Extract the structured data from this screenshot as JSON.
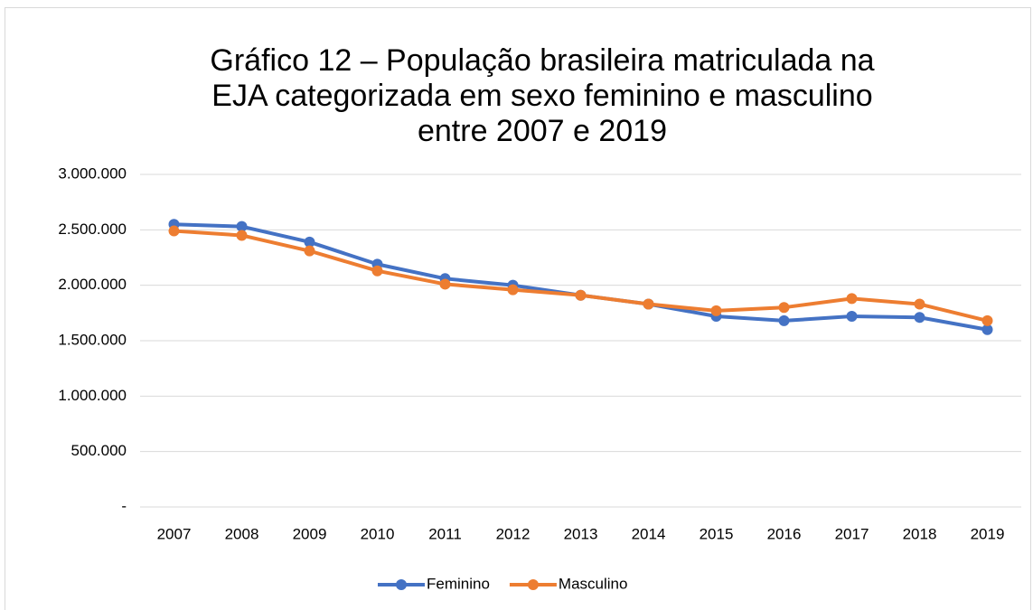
{
  "chart_data": {
    "type": "line",
    "title": "Gráfico 12 – População brasileira matriculada na EJA categorizada em sexo feminino e masculino entre 2007 e 2019",
    "categories": [
      "2007",
      "2008",
      "2009",
      "2010",
      "2011",
      "2012",
      "2013",
      "2014",
      "2015",
      "2016",
      "2017",
      "2018",
      "2019"
    ],
    "series": [
      {
        "name": "Feminino",
        "color": "#4472c4",
        "values": [
          2550000,
          2530000,
          2390000,
          2190000,
          2060000,
          2000000,
          1910000,
          1830000,
          1720000,
          1680000,
          1720000,
          1710000,
          1600000
        ]
      },
      {
        "name": "Masculino",
        "color": "#ed7d31",
        "values": [
          2490000,
          2450000,
          2310000,
          2130000,
          2010000,
          1960000,
          1910000,
          1830000,
          1770000,
          1800000,
          1880000,
          1830000,
          1680000
        ]
      }
    ],
    "ylim": [
      0,
      3000000
    ],
    "yticks": [
      {
        "value": 0,
        "label": "-"
      },
      {
        "value": 500000,
        "label": "500.000"
      },
      {
        "value": 1000000,
        "label": "1.000.000"
      },
      {
        "value": 1500000,
        "label": "1.500.000"
      },
      {
        "value": 2000000,
        "label": "2.000.000"
      },
      {
        "value": 2500000,
        "label": "2.500.000"
      },
      {
        "value": 3000000,
        "label": "3.000.000"
      }
    ],
    "grid": true,
    "legend": "bottom"
  }
}
